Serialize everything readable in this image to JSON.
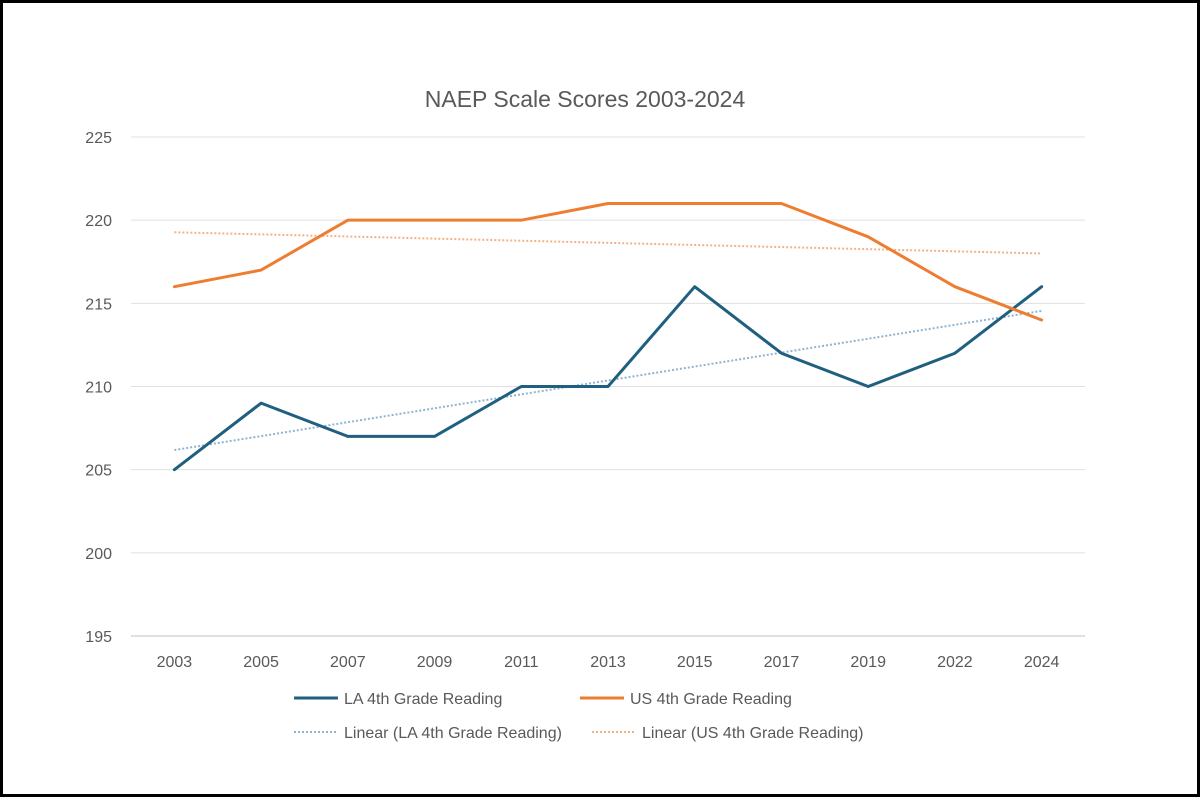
{
  "chart_data": {
    "type": "line",
    "title": "NAEP Scale Scores 2003-2024",
    "categories": [
      "2003",
      "2005",
      "2007",
      "2009",
      "2011",
      "2013",
      "2015",
      "2017",
      "2019",
      "2022",
      "2024"
    ],
    "ylim": [
      195,
      225
    ],
    "yticks": [
      "195",
      "200",
      "205",
      "210",
      "215",
      "220",
      "225"
    ],
    "grid": true,
    "legend_position": "bottom",
    "series": [
      {
        "name": "LA 4th Grade Reading",
        "color": "#1f5f7f",
        "style": "solid",
        "values": [
          205,
          209,
          207,
          207,
          210,
          210,
          216,
          212,
          210,
          212,
          216
        ]
      },
      {
        "name": "US 4th Grade Reading",
        "color": "#ee7d31",
        "style": "solid",
        "values": [
          216,
          217,
          220,
          220,
          220,
          221,
          221,
          221,
          219,
          216,
          214
        ]
      }
    ],
    "trendlines": [
      {
        "name": "Linear (LA 4th Grade Reading)",
        "color": "#8fb4cf",
        "style": "dotted",
        "of_series": 0
      },
      {
        "name": "Linear (US 4th Grade Reading)",
        "color": "#f4b183",
        "style": "dotted",
        "of_series": 1
      }
    ]
  }
}
